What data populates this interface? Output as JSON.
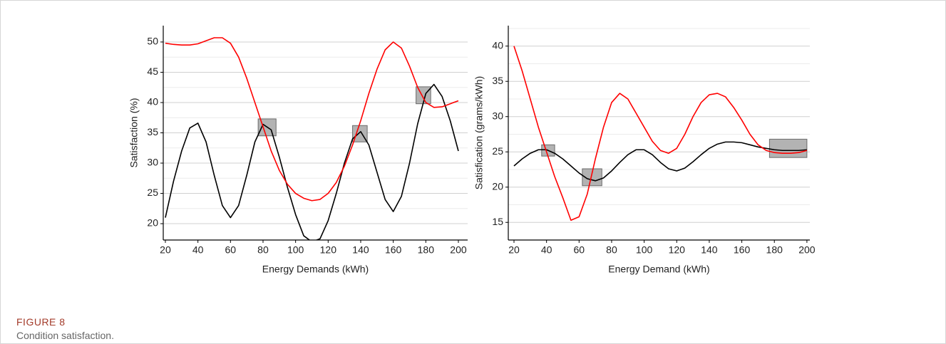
{
  "figure": {
    "label": "FIGURE 8",
    "caption": "Condition satisfaction."
  },
  "chart_data": [
    {
      "type": "line",
      "x_label": "Energy Demands (kWh)",
      "y_label": "Satisfaction (%)",
      "xlim": [
        18.7,
        205.7
      ],
      "ylim": [
        17.3,
        52.7
      ],
      "xticks": [
        20,
        40,
        60,
        80,
        100,
        120,
        140,
        160,
        180,
        200
      ],
      "yticks": [
        20,
        25,
        30,
        35,
        40,
        45,
        50
      ],
      "minor_yticks": [
        22.5,
        27.5,
        32.5,
        37.5,
        42.5,
        47.5
      ],
      "grid": true,
      "x": [
        20,
        25,
        30,
        35,
        40,
        45,
        50,
        55,
        60,
        65,
        70,
        75,
        80,
        85,
        90,
        95,
        100,
        105,
        110,
        115,
        120,
        125,
        130,
        135,
        140,
        145,
        150,
        155,
        160,
        165,
        170,
        175,
        180,
        185,
        190,
        195,
        200
      ],
      "series": [
        {
          "color": "#000000",
          "values": [
            21,
            27,
            32,
            35.8,
            36.6,
            33.5,
            28,
            23,
            21,
            23,
            28,
            33.5,
            36.4,
            35.5,
            31,
            26,
            21.5,
            18,
            17,
            17.5,
            20.5,
            25,
            30,
            34,
            35.2,
            33,
            28.5,
            24,
            22,
            24.5,
            30,
            36.5,
            41.5,
            43,
            41,
            37,
            32
          ]
        },
        {
          "color": "#ff0000",
          "values": [
            49.8,
            49.6,
            49.5,
            49.5,
            49.7,
            50.2,
            50.7,
            50.7,
            49.8,
            47.5,
            44,
            40,
            36,
            32,
            28.8,
            26.5,
            25,
            24.2,
            23.8,
            24,
            25,
            26.8,
            29.5,
            33,
            37,
            41.5,
            45.5,
            48.7,
            50,
            49,
            46,
            42.5,
            40,
            39.2,
            39.3,
            39.8,
            40.3
          ]
        }
      ],
      "boxes": [
        {
          "x": [
            77,
            88
          ],
          "y": [
            34.5,
            37.3
          ]
        },
        {
          "x": [
            135,
            144
          ],
          "y": [
            33.5,
            36.2
          ]
        },
        {
          "x": [
            174,
            183
          ],
          "y": [
            39.8,
            42.6
          ]
        }
      ]
    },
    {
      "type": "line",
      "x_label": "Energy Demand (kWh)",
      "y_label": "Satisfication (grams/kWh)",
      "xlim": [
        16.5,
        201.8
      ],
      "ylim": [
        12.5,
        42.9
      ],
      "xticks": [
        20,
        40,
        60,
        80,
        100,
        120,
        140,
        160,
        180,
        200
      ],
      "yticks": [
        15,
        20,
        25,
        30,
        35,
        40
      ],
      "minor_yticks": [
        17.5,
        22.5,
        27.5,
        32.5,
        37.5,
        42.5
      ],
      "grid": true,
      "x": [
        20,
        25,
        30,
        35,
        40,
        45,
        50,
        55,
        60,
        65,
        70,
        75,
        80,
        85,
        90,
        95,
        100,
        105,
        110,
        115,
        120,
        125,
        130,
        135,
        140,
        145,
        150,
        155,
        160,
        165,
        170,
        175,
        180,
        185,
        190,
        195,
        200
      ],
      "series": [
        {
          "color": "#000000",
          "values": [
            23,
            24,
            24.8,
            25.3,
            25.3,
            24.8,
            24,
            23,
            22,
            21.2,
            20.9,
            21.3,
            22.3,
            23.5,
            24.6,
            25.3,
            25.3,
            24.6,
            23.5,
            22.6,
            22.3,
            22.7,
            23.6,
            24.6,
            25.5,
            26.1,
            26.4,
            26.4,
            26.3,
            26,
            25.7,
            25.5,
            25.3,
            25.2,
            25.2,
            25.2,
            25.3
          ]
        },
        {
          "color": "#ff0000",
          "values": [
            40,
            36.5,
            32.5,
            28.5,
            25,
            21.5,
            18.5,
            15.3,
            15.8,
            19,
            24,
            28.5,
            32,
            33.3,
            32.5,
            30.5,
            28.5,
            26.5,
            25.2,
            24.8,
            25.5,
            27.5,
            30,
            32,
            33.1,
            33.3,
            32.8,
            31.3,
            29.5,
            27.5,
            26,
            25.2,
            24.9,
            24.8,
            24.8,
            24.9,
            25.2
          ]
        }
      ],
      "boxes": [
        {
          "x": [
            37,
            45
          ],
          "y": [
            24.4,
            26
          ]
        },
        {
          "x": [
            62,
            74
          ],
          "y": [
            20.2,
            22.6
          ]
        },
        {
          "x": [
            177,
            200
          ],
          "y": [
            24.2,
            26.8
          ]
        }
      ]
    }
  ]
}
